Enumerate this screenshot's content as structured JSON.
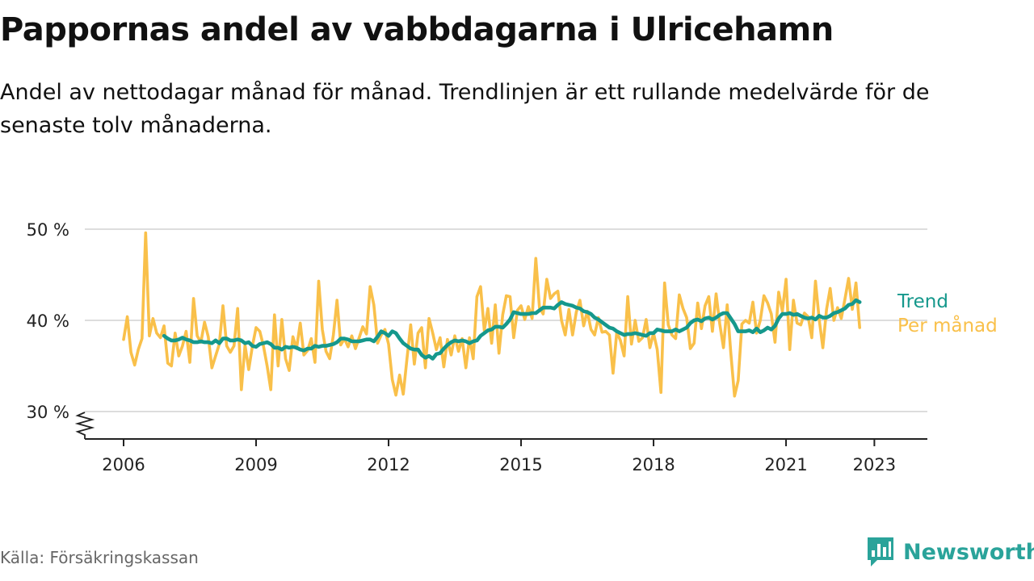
{
  "header": {
    "title": "Pappornas andel av vabbdagarna i Ulricehamn",
    "subtitle": "Andel av nettodagar månad för månad. Trendlinjen är ett rullande medelvärde för de senaste tolv månaderna."
  },
  "footer": {
    "source": "Källa: Försäkringskassan",
    "brand": "Newsworthy"
  },
  "colors": {
    "monthly": "#f9c04a",
    "trend": "#15988c",
    "grid": "#dddddd",
    "axis": "#222222",
    "brand": "#2aa39a"
  },
  "icons": {
    "logo": "bar-chart-speech-bubble-icon",
    "axis_break": "zigzag-axis-break-icon"
  },
  "chart_data": {
    "type": "line",
    "title": "Pappornas andel av vabbdagarna i Ulricehamn",
    "xlabel": "",
    "ylabel": "",
    "x_ticks": [
      "2006",
      "2009",
      "2012",
      "2015",
      "2018",
      "2021",
      "2023"
    ],
    "y_ticks": [
      "30 %",
      "40 %",
      "50 %"
    ],
    "y_tick_values": [
      30,
      40,
      50
    ],
    "ylim": [
      30,
      50
    ],
    "y_axis_break": true,
    "grid": true,
    "legend": "inline-right",
    "series": [
      {
        "name": "Per månad",
        "start": "2006-01",
        "values": [
          37.9,
          40.4,
          36.5,
          35.1,
          36.8,
          38.0,
          49.6,
          38.3,
          40.2,
          38.6,
          38.1,
          39.4,
          35.3,
          35.0,
          38.6,
          36.1,
          37.2,
          38.8,
          35.4,
          42.4,
          38.3,
          37.6,
          39.8,
          38.2,
          34.8,
          36.1,
          37.4,
          41.6,
          37.2,
          36.5,
          37.2,
          41.3,
          32.4,
          37.3,
          34.6,
          37.2,
          39.2,
          38.8,
          37.2,
          35.0,
          32.4,
          40.6,
          35.0,
          40.1,
          35.8,
          34.5,
          38.2,
          36.9,
          39.7,
          36.2,
          36.7,
          38.0,
          35.4,
          44.3,
          39.0,
          36.6,
          35.8,
          38.4,
          42.2,
          37.3,
          38.0,
          37.1,
          38.3,
          36.9,
          38.1,
          39.3,
          38.5,
          43.7,
          41.7,
          37.5,
          38.4,
          39.0,
          37.4,
          33.5,
          31.8,
          34.0,
          31.9,
          35.8,
          39.5,
          35.2,
          38.6,
          39.2,
          34.8,
          40.2,
          38.6,
          36.8,
          38.1,
          34.9,
          37.9,
          36.2,
          38.3,
          36.6,
          38.0,
          34.8,
          38.1,
          35.8,
          42.6,
          43.7,
          38.9,
          41.3,
          37.5,
          41.7,
          36.4,
          40.6,
          42.7,
          42.6,
          38.1,
          41.1,
          41.6,
          40.1,
          41.5,
          40.2,
          46.8,
          41.4,
          40.7,
          44.5,
          42.4,
          42.9,
          43.2,
          40.0,
          38.4,
          41.2,
          38.4,
          40.9,
          42.2,
          39.4,
          41.0,
          39.0,
          38.4,
          40.3,
          38.7,
          38.8,
          38.4,
          34.2,
          38.7,
          37.8,
          36.1,
          42.6,
          37.4,
          40.0,
          37.7,
          38.1,
          40.1,
          37.0,
          38.6,
          36.8,
          32.1,
          44.1,
          39.5,
          38.4,
          38.0,
          42.8,
          41.3,
          40.3,
          36.9,
          37.5,
          41.9,
          39.1,
          41.6,
          42.6,
          38.8,
          42.9,
          39.6,
          37.0,
          41.7,
          36.4,
          31.7,
          33.4,
          39.6,
          40.0,
          39.7,
          42.0,
          38.6,
          40.0,
          42.7,
          41.9,
          40.7,
          37.6,
          43.1,
          41.0,
          44.5,
          36.8,
          42.2,
          39.7,
          39.5,
          40.8,
          40.4,
          38.1,
          44.3,
          40.1,
          37.0,
          41.2,
          43.5,
          40.0,
          41.4,
          40.2,
          42.3,
          44.6,
          41.2,
          44.1,
          39.2
        ]
      },
      {
        "name": "Trend",
        "start": "2006-12",
        "values": [
          38.3,
          38.0,
          37.8,
          37.8,
          37.9,
          38.1,
          37.9,
          37.8,
          37.6,
          37.6,
          37.7,
          37.6,
          37.6,
          37.5,
          37.8,
          37.5,
          38.0,
          38.0,
          37.8,
          37.8,
          37.9,
          37.8,
          37.5,
          37.6,
          37.2,
          37.1,
          37.4,
          37.5,
          37.6,
          37.4,
          37.0,
          37.0,
          36.8,
          37.1,
          37.0,
          37.1,
          37.0,
          36.8,
          36.7,
          36.9,
          36.9,
          37.2,
          37.1,
          37.2,
          37.2,
          37.3,
          37.4,
          37.6,
          38.0,
          38.0,
          37.9,
          37.7,
          37.7,
          37.7,
          37.8,
          37.9,
          37.9,
          37.7,
          38.2,
          38.8,
          38.6,
          38.3,
          38.8,
          38.6,
          38.0,
          37.5,
          37.2,
          36.9,
          36.8,
          36.8,
          36.2,
          35.9,
          36.1,
          35.8,
          36.3,
          36.4,
          36.9,
          37.3,
          37.6,
          37.8,
          37.7,
          37.8,
          37.7,
          37.5,
          37.7,
          37.8,
          38.3,
          38.6,
          38.9,
          39.0,
          39.3,
          39.3,
          39.2,
          39.6,
          40.1,
          40.9,
          40.8,
          40.7,
          40.7,
          40.7,
          40.8,
          40.8,
          41.1,
          41.4,
          41.4,
          41.4,
          41.3,
          41.7,
          42.0,
          41.8,
          41.7,
          41.6,
          41.4,
          41.3,
          41.0,
          40.9,
          40.7,
          40.3,
          40.1,
          39.8,
          39.5,
          39.2,
          39.1,
          38.8,
          38.6,
          38.4,
          38.5,
          38.5,
          38.6,
          38.5,
          38.4,
          38.3,
          38.6,
          38.6,
          39.0,
          38.9,
          38.8,
          38.8,
          38.8,
          39.0,
          38.8,
          39.0,
          39.2,
          39.7,
          40.0,
          40.1,
          39.9,
          40.2,
          40.3,
          40.1,
          40.3,
          40.6,
          40.8,
          40.8,
          40.2,
          39.6,
          38.8,
          38.8,
          38.8,
          38.9,
          38.7,
          39.1,
          38.7,
          38.9,
          39.2,
          39.0,
          39.4,
          40.2,
          40.7,
          40.7,
          40.8,
          40.6,
          40.7,
          40.5,
          40.3,
          40.2,
          40.3,
          40.1,
          40.5,
          40.3,
          40.3,
          40.5,
          40.8,
          40.9,
          41.1,
          41.3,
          41.7,
          41.8,
          42.2,
          42.0
        ]
      }
    ]
  }
}
